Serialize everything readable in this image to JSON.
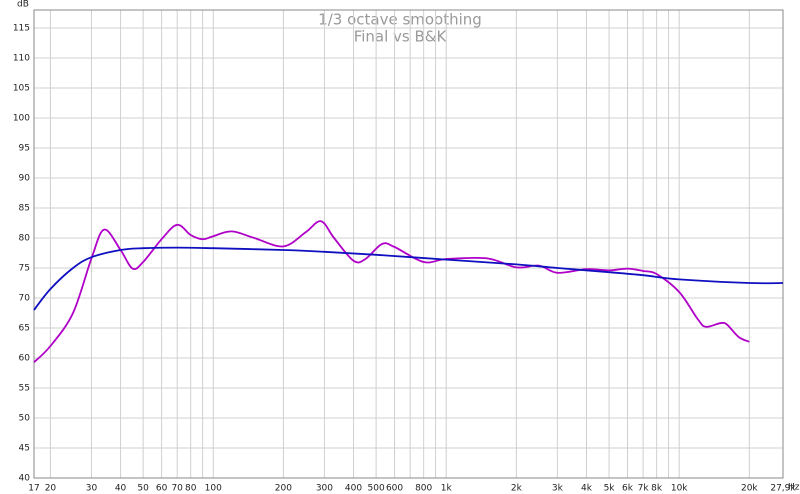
{
  "chart_data": {
    "type": "line",
    "title": "1/3 octave smoothing",
    "subtitle": "Final vs B&K",
    "y_label": "dB",
    "x_label": "Hz",
    "xscale": "log",
    "xlim": [
      17,
      27900
    ],
    "ylim": [
      40,
      118
    ],
    "xticks": [
      17,
      20,
      30,
      40,
      50,
      60,
      70,
      80,
      100,
      200,
      300,
      400,
      500,
      600,
      800,
      {
        "value": 1000,
        "label": "1k"
      },
      {
        "value": 2000,
        "label": "2k"
      },
      {
        "value": 3000,
        "label": "3k"
      },
      {
        "value": 4000,
        "label": "4k"
      },
      {
        "value": 5000,
        "label": "5k"
      },
      {
        "value": 6000,
        "label": "6k"
      },
      {
        "value": 7000,
        "label": "7k"
      },
      {
        "value": 8000,
        "label": "8k"
      },
      {
        "value": 10000,
        "label": "10k"
      },
      {
        "value": 20000,
        "label": "20k"
      },
      {
        "value": 27900,
        "label": "27,9k"
      }
    ],
    "xminor": [
      90,
      700,
      900,
      9000
    ],
    "yticks": [
      40,
      45,
      50,
      55,
      60,
      65,
      70,
      75,
      80,
      85,
      90,
      95,
      100,
      105,
      110,
      115
    ],
    "grid": true,
    "series": [
      {
        "color": "#b000c8",
        "x": [
          17,
          20,
          25,
          30,
          34,
          40,
          45,
          50,
          60,
          70,
          80,
          90,
          100,
          120,
          150,
          200,
          250,
          290,
          330,
          400,
          450,
          530,
          600,
          800,
          1000,
          1500,
          2000,
          2500,
          3000,
          4000,
          5000,
          6000,
          7000,
          8000,
          10000,
          12000,
          13000,
          15000,
          16000,
          18000,
          20000
        ],
        "values": [
          59.3,
          62,
          67.5,
          76.6,
          81.4,
          78,
          74.9,
          76,
          79.8,
          82.2,
          80.5,
          79.8,
          80.3,
          81.1,
          80,
          78.6,
          81,
          82.8,
          80,
          76.2,
          76.5,
          79,
          78.5,
          76,
          76.5,
          76.6,
          75.1,
          75.4,
          74.2,
          74.8,
          74.6,
          74.9,
          74.5,
          74,
          71,
          66.5,
          65.2,
          65.8,
          65.6,
          63.5,
          62.7
        ]
      },
      {
        "color": "#1010c0",
        "x": [
          17,
          20,
          25,
          30,
          40,
          50,
          70,
          100,
          200,
          300,
          500,
          1000,
          2000,
          3000,
          5000,
          7000,
          10000,
          20000,
          27900
        ],
        "values": [
          68,
          71.5,
          75,
          76.8,
          78,
          78.3,
          78.4,
          78.3,
          78,
          77.7,
          77.2,
          76.4,
          75.6,
          75,
          74.3,
          73.8,
          73.1,
          72.5,
          72.5
        ]
      }
    ]
  }
}
